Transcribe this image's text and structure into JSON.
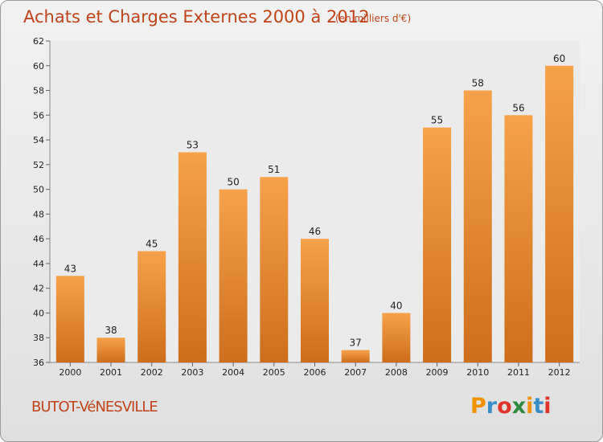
{
  "header": {
    "title": "Achats et Charges Externes 2000 à 2012",
    "subtitle": "(en milliers d'€)"
  },
  "footer": {
    "commune": "BUTOT-VéNESVILLE",
    "logo_letters": [
      "P",
      "r",
      "o",
      "x",
      "i",
      "t",
      "i"
    ],
    "logo_colors": [
      "#f39200",
      "#3a8ec9",
      "#e2342c",
      "#2e8b3d",
      "#f39200",
      "#3a8ec9",
      "#e2342c"
    ]
  },
  "chart_data": {
    "type": "bar",
    "title": "Achats et Charges Externes 2000 à 2012",
    "subtitle": "(en milliers d'€)",
    "xlabel": "",
    "ylabel": "",
    "categories": [
      "2000",
      "2001",
      "2002",
      "2003",
      "2004",
      "2005",
      "2006",
      "2007",
      "2008",
      "2009",
      "2010",
      "2011",
      "2012"
    ],
    "values": [
      43,
      38,
      45,
      53,
      50,
      51,
      46,
      37,
      40,
      55,
      58,
      56,
      60
    ],
    "ylim": [
      36,
      62
    ],
    "yticks": [
      36,
      38,
      40,
      42,
      44,
      46,
      48,
      50,
      52,
      54,
      56,
      58,
      60,
      62
    ],
    "grid": false,
    "data_labels": true,
    "bar_color_top": "#f6a24a",
    "bar_color_bottom": "#cd6e1c"
  }
}
